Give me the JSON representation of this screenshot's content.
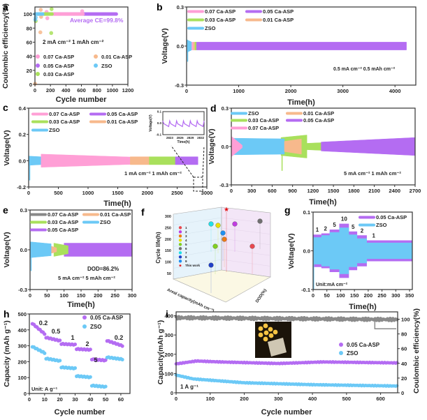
{
  "colors": {
    "pink": "#ff9fd6",
    "purple": "#b46cf2",
    "green": "#a9e05c",
    "orange": "#f7b98c",
    "blue": "#6cc9f6",
    "gray": "#8a8a8a"
  },
  "chart_data": [
    {
      "panel": "a",
      "type": "scatter",
      "xlabel": "Cycle number",
      "ylabel": "Coulombic efficiency(%)",
      "xlim": [
        0,
        1200
      ],
      "ylim": [
        0,
        110
      ],
      "xticks": [
        0,
        200,
        400,
        600,
        800,
        1000,
        1200
      ],
      "yticks": [
        0,
        20,
        40,
        60,
        80,
        100
      ],
      "annotations": [
        "Average CE=99.8%",
        "2 mA cm⁻²  1 mAh cm⁻²"
      ],
      "series": [
        {
          "name": "0.05 Ca-ASP",
          "color": "#b46cf2",
          "cycles": [
            0,
            1050
          ],
          "ce": 100,
          "outliers": []
        },
        {
          "name": "0.07 Ca-ASP",
          "color": "#ff9fd6",
          "cycles": [
            0,
            620
          ],
          "ce": 100,
          "outliers": [
            [
              160,
              94
            ],
            [
              150,
              103
            ],
            [
              610,
              104
            ]
          ]
        },
        {
          "name": "0.03 Ca-ASP",
          "color": "#a9e05c",
          "cycles": [
            0,
            220
          ],
          "ce": 100,
          "outliers": [
            [
              215,
              107
            ],
            [
              210,
              73
            ],
            [
              10,
              90
            ]
          ]
        },
        {
          "name": "0.01 Ca-ASP",
          "color": "#f7b98c",
          "cycles": [
            0,
            80
          ],
          "ce": 100,
          "outliers": [
            [
              75,
              106
            ],
            [
              70,
              74
            ],
            [
              80,
              96
            ],
            [
              2,
              1
            ]
          ]
        },
        {
          "name": "ZSO",
          "color": "#6cc9f6",
          "cycles": [
            0,
            100
          ],
          "ce": 100,
          "outliers": [
            [
              5,
              92
            ],
            [
              10,
              95
            ]
          ]
        }
      ],
      "legend": [
        "0.07 Ca-ASP",
        "0.01 Ca-ASP",
        "0.05 Ca-ASP",
        "ZSO",
        "0.03 Ca-ASP"
      ]
    },
    {
      "panel": "b",
      "type": "area",
      "xlabel": "Time(h)",
      "ylabel": "Voltage(V)",
      "xlim": [
        0,
        4400
      ],
      "ylim": [
        -0.3,
        0.3
      ],
      "xticks": [
        0,
        1000,
        2000,
        3000,
        4000
      ],
      "yticks": [
        -0.3,
        0.0,
        0.3
      ],
      "ytick_labels": [
        "-0.3",
        "0.0",
        "0.3"
      ],
      "annotations": [
        "0.5 mA cm⁻²  0.5 mAh cm⁻²"
      ],
      "series": [
        {
          "name": "ZSO",
          "color": "#6cc9f6",
          "t": [
            0,
            100
          ],
          "amp": [
            0.05,
            0.03
          ],
          "spike": -0.12
        },
        {
          "name": "0.07 Ca-ASP",
          "color": "#ff9fd6",
          "t": [
            100,
            140
          ],
          "amp": [
            0.03,
            0.03
          ]
        },
        {
          "name": "0.01 Ca-ASP",
          "color": "#f7b98c",
          "t": [
            130,
            170
          ],
          "amp": [
            0.03,
            0.03
          ]
        },
        {
          "name": "0.03 Ca-ASP",
          "color": "#a9e05c",
          "t": [
            160,
            190
          ],
          "amp": [
            0.03,
            0.03
          ]
        },
        {
          "name": "0.05 Ca-ASP",
          "color": "#b46cf2",
          "t": [
            190,
            4220
          ],
          "amp": [
            0.03,
            0.03
          ]
        }
      ],
      "legend": [
        "0.07 Ca-ASP",
        "0.05 Ca-ASP",
        "0.03 Ca-ASP",
        "0.01 Ca-ASP",
        "ZSO"
      ]
    },
    {
      "panel": "c",
      "type": "area",
      "xlabel": "Time(h)",
      "ylabel": "Voltage(V)",
      "xlim": [
        0,
        3000
      ],
      "ylim": [
        -0.2,
        0.4
      ],
      "xticks": [
        0,
        500,
        1000,
        1500,
        2000,
        2500,
        3000
      ],
      "yticks": [
        -0.2,
        0.0,
        0.2,
        0.4
      ],
      "ytick_labels": [
        "-0.2",
        "0.0",
        "0.2",
        "0.4"
      ],
      "annotations": [
        "1 mA cm⁻²  1 mAh cm⁻²"
      ],
      "series": [
        {
          "name": "ZSO",
          "color": "#6cc9f6",
          "t": [
            0,
            210
          ],
          "amp": [
            0.035,
            0.03
          ],
          "spike": -0.15
        },
        {
          "name": "0.07 Ca-ASP",
          "color": "#ff9fd6",
          "t": [
            210,
            1710
          ],
          "amp": [
            0.05,
            0.028
          ]
        },
        {
          "name": "0.01 Ca-ASP",
          "color": "#f7b98c",
          "t": [
            1710,
            2030
          ],
          "amp": [
            0.03,
            0.03
          ]
        },
        {
          "name": "0.03 Ca-ASP",
          "color": "#a9e05c",
          "t": [
            2030,
            2470
          ],
          "amp": [
            0.03,
            0.03
          ]
        },
        {
          "name": "0.05 Ca-ASP",
          "color": "#b46cf2",
          "t": [
            2470,
            2850
          ],
          "amp": [
            0.03,
            0.03
          ]
        }
      ],
      "legend": [
        "0.07 Ca-ASP",
        "0.05 Ca-ASP",
        "0.03 Ca-ASP",
        "0.01 Ca-ASP",
        "ZSO"
      ],
      "inset": {
        "xlabel": "Time(h)",
        "ylabel": "Voltage(V)",
        "xlim": [
          2821,
          2833
        ],
        "ylim": [
          -0.1,
          0.1
        ],
        "xticks": [
          2823,
          2826,
          2829,
          2832
        ],
        "yticks": [
          -0.1,
          0.0,
          0.1
        ],
        "ytick_labels": [
          "-0.1",
          "0.0",
          "0.1"
        ],
        "period_h": 2,
        "amp": [
          0.02,
          -0.03
        ]
      }
    },
    {
      "panel": "d",
      "type": "area",
      "xlabel": "Time(h)",
      "ylabel": "Voltage(V)",
      "xlim": [
        0,
        2700
      ],
      "ylim": [
        -0.3,
        0.3
      ],
      "xticks": [
        0,
        300,
        600,
        900,
        1200,
        1500,
        1800,
        2100,
        2400,
        2700
      ],
      "yticks": [
        -0.3,
        0.0,
        0.3
      ],
      "ytick_labels": [
        "-0.3",
        "0.0",
        "0.3"
      ],
      "annotations": [
        "5 mA cm⁻²  1 mAh cm⁻²"
      ],
      "series": [
        {
          "name": "0.03 Ca-ASP",
          "color": "#a9e05c",
          "t": [
            730,
            1110
          ],
          "amp": [
            0.07,
            0.09
          ],
          "spike": -0.19
        },
        {
          "name": "0.03 Ca-ASP",
          "color": "#a9e05c",
          "t": [
            1110,
            1320
          ],
          "amp": [
            0.025,
            0.03
          ]
        },
        {
          "name": "ZSO",
          "color": "#6cc9f6",
          "t": [
            0,
            780
          ],
          "amp": [
            0.065,
            0.06
          ]
        },
        {
          "name": "0.01 Ca-ASP",
          "color": "#f7b98c",
          "t": [
            780,
            1030
          ],
          "amp": [
            0.04,
            0.06
          ]
        },
        {
          "name": "0.07 Ca-ASP",
          "color": "#ff9fd6",
          "t": [
            0,
            160
          ],
          "amp": [
            0.08,
            0.01
          ]
        },
        {
          "name": "0.05 Ca-ASP",
          "color": "#b46cf2",
          "t": [
            1320,
            2700
          ],
          "amp": [
            0.035,
            0.07
          ]
        }
      ],
      "legend": [
        "ZSO",
        "0.01 Ca-ASP",
        "0.03 Ca-ASP",
        "0.05 Ca-ASP",
        "0.07 Ca-ASP"
      ]
    },
    {
      "panel": "e",
      "type": "area",
      "xlabel": "Time(h)",
      "ylabel": "Voltage(V)",
      "xlim": [
        0,
        300
      ],
      "ylim": [
        -0.3,
        0.3
      ],
      "xticks": [
        0,
        50,
        100,
        150,
        200,
        250,
        300
      ],
      "yticks": [
        -0.3,
        0.0,
        0.3
      ],
      "ytick_labels": [
        "-0.3",
        "0.0",
        "0.3"
      ],
      "annotations": [
        "DOD=86.2%",
        "5 mA cm⁻²  5 mAh cm⁻²"
      ],
      "series": [
        {
          "name": "0.05 Ca-ASP",
          "color": "#b46cf2",
          "t": [
            100,
            300
          ],
          "amp": [
            0.05,
            0.05
          ]
        },
        {
          "name": "0.03 Ca-ASP",
          "color": "#a9e05c",
          "t": [
            70,
            112
          ],
          "amp": [
            0.05,
            0.03
          ]
        },
        {
          "name": "0.01 Ca-ASP",
          "color": "#f7b98c",
          "t": [
            58,
            78
          ],
          "amp": [
            0.03,
            0.015
          ]
        },
        {
          "name": "ZSO",
          "color": "#6cc9f6",
          "t": [
            0,
            62
          ],
          "amp": [
            0.06,
            0.045
          ],
          "spike": -0.16
        }
      ],
      "legend": [
        "0.07 Ca-ASP",
        "0.01 Ca-ASP",
        "0.03 Ca-ASP",
        "ZSO",
        "0.05 Ca-ASP"
      ]
    },
    {
      "panel": "f",
      "type": "scatter3d",
      "zlabel": "Cycle life(h)",
      "xlabel": "Areal capacity(mAh cm⁻²)",
      "ylabel": "DOD(%)",
      "zticks": [
        50,
        100,
        150,
        200,
        250,
        300
      ],
      "legend": [
        {
          "label": "1",
          "color": "#e8484f"
        },
        {
          "label": "2",
          "color": "#c03ee0"
        },
        {
          "label": "3",
          "color": "#f07a10"
        },
        {
          "label": "4",
          "color": "#e8e000"
        },
        {
          "label": "5",
          "color": "#80d020"
        },
        {
          "label": "6",
          "color": "#707070"
        },
        {
          "label": "7",
          "color": "#20e0e8"
        },
        {
          "label": "8",
          "color": "#2040c8"
        },
        {
          "label": "9",
          "color": "#2090f0"
        },
        {
          "label": "This work",
          "color": "#e01010"
        }
      ]
    },
    {
      "panel": "g",
      "type": "area",
      "xlabel": "Time(h)",
      "ylabel": "Voltage(V)",
      "xlim": [
        0,
        360
      ],
      "ylim": [
        -0.1,
        0.1
      ],
      "xticks": [
        0,
        50,
        100,
        150,
        200,
        250,
        300,
        350
      ],
      "yticks": [
        -0.1,
        0.0,
        0.1
      ],
      "ytick_labels": [
        "-0.1",
        "0.0",
        "0.1"
      ],
      "annotations": [
        "Unit:mA cm⁻²"
      ],
      "current_labels": [
        "1",
        "2",
        "5",
        "10",
        "5",
        "2",
        "1"
      ],
      "steps_t": [
        [
          0,
          30
        ],
        [
          30,
          60
        ],
        [
          60,
          95
        ],
        [
          95,
          130
        ],
        [
          130,
          160
        ],
        [
          160,
          195
        ],
        [
          195,
          360
        ]
      ],
      "series": [
        {
          "name": "0.05 Ca-ASP",
          "color": "#b46cf2",
          "amp": [
            0.042,
            0.045,
            0.055,
            0.07,
            0.05,
            0.04,
            0.027
          ]
        },
        {
          "name": "ZSO",
          "color": "#6cc9f6",
          "amp": [
            0.035,
            0.04,
            0.048,
            0.06,
            0.042,
            0.032,
            0.021
          ],
          "spike": -0.1
        }
      ],
      "legend": [
        "0.05 Ca-ASP",
        "ZSO"
      ]
    },
    {
      "panel": "h",
      "type": "scatter",
      "xlabel": "Cycle number",
      "ylabel": "Capacity (mAh g⁻¹)",
      "xlim": [
        0,
        66
      ],
      "ylim": [
        0,
        500
      ],
      "xticks": [
        0,
        10,
        20,
        30,
        40,
        50,
        60
      ],
      "yticks": [
        0,
        100,
        200,
        300,
        400,
        500
      ],
      "annotations": [
        "Unit: A g⁻¹"
      ],
      "rate_labels": [
        "0.2",
        "0.5",
        "1",
        "2",
        "5",
        "0.2"
      ],
      "series": [
        {
          "name": "0.05 Ca-ASP",
          "color": "#b46cf2",
          "steps": [
            {
              "rate": 0.2,
              "cycles": [
                2,
                10
              ],
              "capacity": [
                440,
                375
              ]
            },
            {
              "rate": 0.5,
              "cycles": [
                11,
                20
              ],
              "capacity": [
                352,
                332
              ]
            },
            {
              "rate": 1,
              "cycles": [
                21,
                30
              ],
              "capacity": [
                312,
                307
              ]
            },
            {
              "rate": 2,
              "cycles": [
                31,
                40
              ],
              "capacity": [
                280,
                275
              ]
            },
            {
              "rate": 5,
              "cycles": [
                41,
                50
              ],
              "capacity": [
                215,
                208
              ]
            },
            {
              "rate": 0.2,
              "cycles": [
                51,
                61
              ],
              "capacity": [
                332,
                300
              ]
            }
          ]
        },
        {
          "name": "ZSO",
          "color": "#6cc9f6",
          "steps": [
            {
              "rate": 0.2,
              "cycles": [
                2,
                10
              ],
              "capacity": [
                295,
                255
              ]
            },
            {
              "rate": 0.5,
              "cycles": [
                11,
                20
              ],
              "capacity": [
                220,
                205
              ]
            },
            {
              "rate": 1,
              "cycles": [
                21,
                30
              ],
              "capacity": [
                165,
                158
              ]
            },
            {
              "rate": 2,
              "cycles": [
                31,
                40
              ],
              "capacity": [
                110,
                102
              ]
            },
            {
              "rate": 5,
              "cycles": [
                41,
                50
              ],
              "capacity": [
                50,
                42
              ]
            },
            {
              "rate": 0.2,
              "cycles": [
                51,
                61
              ],
              "capacity": [
                228,
                215
              ]
            }
          ]
        }
      ],
      "legend": [
        "0.05 Ca-ASP",
        "ZSO"
      ]
    },
    {
      "panel": "i",
      "type": "scatter",
      "xlabel": "Cycle number",
      "ylabel": "Capacity(mAh g⁻¹)",
      "y2label": "Coulombic efficiency(%)",
      "xlim": [
        0,
        650
      ],
      "ylim": [
        0,
        420
      ],
      "y2lim": [
        0,
        110
      ],
      "xticks": [
        0,
        100,
        200,
        300,
        400,
        500,
        600
      ],
      "yticks": [
        0,
        100,
        200,
        300,
        400
      ],
      "y2ticks": [
        0,
        20,
        40,
        60,
        80,
        100
      ],
      "annotations": [
        "1 A g⁻¹"
      ],
      "series": [
        {
          "name": "0.05 Ca-ASP",
          "color": "#b46cf2",
          "keypoints": [
            [
              0,
              150
            ],
            [
              60,
              165
            ],
            [
              130,
              160
            ],
            [
              300,
              152
            ],
            [
              430,
              160
            ],
            [
              650,
              155
            ]
          ]
        },
        {
          "name": "ZSO",
          "color": "#6cc9f6",
          "keypoints": [
            [
              0,
              92
            ],
            [
              50,
              72
            ],
            [
              200,
              52
            ],
            [
              400,
              42
            ],
            [
              650,
              35
            ]
          ]
        },
        {
          "name": "Coulombic efficiency",
          "color": "#8a8a8a",
          "axis": "right",
          "keypoints": [
            [
              0,
              102
            ],
            [
              650,
              99.5
            ]
          ]
        }
      ],
      "legend": [
        "0.05 Ca-ASP",
        "ZSO"
      ]
    }
  ]
}
